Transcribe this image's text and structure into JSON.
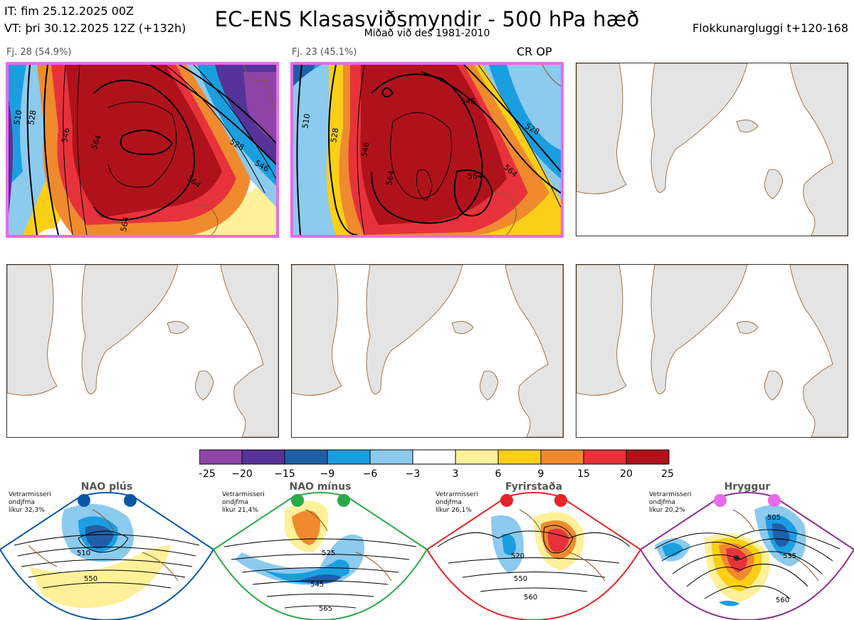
{
  "header": {
    "title": "EC-ENS Klasasviðsmyndir - 500 hPa hæð",
    "subtitle": "Miðað við des 1981-2010",
    "it_line": "IT: fim 25.12.2025 00Z",
    "vt_line": "VT: þri 30.12.2025 12Z  (+132h)",
    "window_label": "Flokkunargluggi t+120-168"
  },
  "panels": [
    {
      "label": "Fj. 28 (54.9%)",
      "contours": [
        "528",
        "546",
        "564",
        "564",
        "546",
        "528",
        "510",
        "564"
      ]
    },
    {
      "label": "Fj. 23 (45.1%)",
      "contours": [
        "510",
        "528",
        "546",
        "564",
        "564",
        "564",
        "546",
        "528"
      ]
    },
    {
      "label": ""
    },
    {
      "label": ""
    },
    {
      "label": ""
    },
    {
      "label": ""
    }
  ],
  "crop_label": "CR OP",
  "colorbar": {
    "colors": [
      "#8e44a8",
      "#553399",
      "#1f5fa8",
      "#1b9ee0",
      "#8ccaee",
      "#ffffff",
      "#fff099",
      "#fbcf17",
      "#f08a2e",
      "#e8323b",
      "#b0121b"
    ],
    "ticks": [
      "−25",
      "−20",
      "−15",
      "−9",
      "−6",
      "−3",
      "3",
      "6",
      "9",
      "15",
      "20",
      "25"
    ]
  },
  "regimes": [
    {
      "name": "NAO plús",
      "color": "#0a56a6",
      "note": [
        "Vetrarmisseri",
        "ondjfma",
        "líkur 32,3%"
      ],
      "contours": [
        "510",
        "550"
      ]
    },
    {
      "name": "NAO mínus",
      "color": "#2aa84a",
      "note": [
        "Vetrarmisseri",
        "ondjfma",
        "líkur 21,4%"
      ],
      "contours": [
        "525",
        "545",
        "565"
      ]
    },
    {
      "name": "Fyrirstaða",
      "color": "#e8232a",
      "note": [
        "Vetrarmisseri",
        "ondjfma",
        "líkur 26,1%"
      ],
      "contours": [
        "520",
        "550",
        "560"
      ]
    },
    {
      "name": "Hryggur",
      "color": "#8a2e8e",
      "dot_color": "#e86be8",
      "note": [
        "Vetrarmisseri",
        "ondjfma",
        "líkur 20,2%"
      ],
      "contours": [
        "505",
        "535",
        "560"
      ]
    }
  ]
}
